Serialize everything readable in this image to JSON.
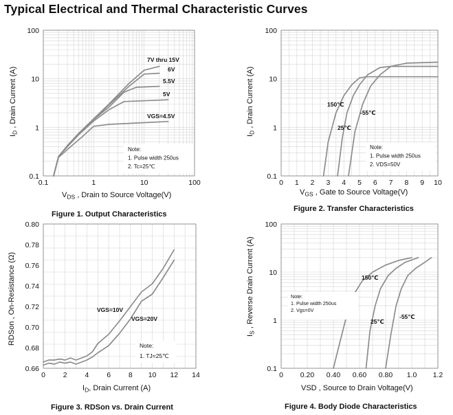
{
  "page": {
    "title": "Typical Electrical and Thermal Characteristic Curves"
  },
  "chart_data": [
    {
      "type": "line",
      "caption": "Figure 1. Output Characteristics",
      "xlabel_parts": [
        "V",
        "DS",
        " , Drain to Source Voltage(V)"
      ],
      "ylabel_parts": [
        "I",
        "D",
        " , Drain Current (A)"
      ],
      "xscale": "log",
      "yscale": "log",
      "xlim": [
        0.1,
        100
      ],
      "ylim": [
        0.1,
        100
      ],
      "xticks": [
        "0.1",
        "1",
        "10",
        "100"
      ],
      "yticks": [
        "0.1",
        "1",
        "10",
        "100"
      ],
      "grid": true,
      "note_lines": [
        "Note:",
        "1. Pulse width 250us",
        "2. Tc=25℃"
      ],
      "series": [
        {
          "name": "7V thru 15V",
          "x": [
            0.16,
            0.2,
            0.3,
            0.5,
            1,
            2,
            5,
            10,
            20
          ],
          "y": [
            0.1,
            0.25,
            0.42,
            0.75,
            1.5,
            3,
            8,
            15,
            18
          ]
        },
        {
          "name": "6V",
          "x": [
            0.16,
            0.2,
            0.3,
            0.5,
            1,
            2,
            5,
            10,
            20
          ],
          "y": [
            0.1,
            0.25,
            0.42,
            0.74,
            1.45,
            2.9,
            7,
            12.5,
            13
          ]
        },
        {
          "name": "5.5V",
          "x": [
            0.16,
            0.2,
            0.3,
            0.5,
            1,
            2,
            4,
            7,
            20
          ],
          "y": [
            0.1,
            0.25,
            0.41,
            0.73,
            1.45,
            2.6,
            5.3,
            6.7,
            7
          ]
        },
        {
          "name": "5V",
          "x": [
            0.16,
            0.2,
            0.3,
            0.5,
            1,
            2,
            4,
            30
          ],
          "y": [
            0.1,
            0.25,
            0.4,
            0.7,
            1.35,
            2.3,
            3.4,
            3.7
          ]
        },
        {
          "name": "VGS=4.5V",
          "x": [
            0.16,
            0.2,
            0.3,
            0.6,
            1,
            2,
            10,
            30
          ],
          "y": [
            0.1,
            0.24,
            0.35,
            0.65,
            1.05,
            1.15,
            1.25,
            1.32
          ]
        }
      ]
    },
    {
      "type": "line",
      "caption": "Figure 2. Transfer Characteristics",
      "xlabel_parts": [
        "V",
        "GS",
        " , Gate to Source Voltage(V)"
      ],
      "ylabel_parts": [
        "I",
        "D",
        " , Drain Current (A)"
      ],
      "xscale": "linear",
      "yscale": "log",
      "xlim": [
        0,
        10
      ],
      "ylim": [
        0.1,
        100
      ],
      "xticks": [
        "0",
        "1",
        "2",
        "3",
        "4",
        "5",
        "6",
        "7",
        "8",
        "9",
        "10"
      ],
      "yticks": [
        "0.1",
        "1",
        "10",
        "100"
      ],
      "grid": true,
      "note_lines": [
        "Note:",
        "1. Pulse width 250us",
        "2. VDS=50V"
      ],
      "series": [
        {
          "name": "150℃",
          "x": [
            2.7,
            3.0,
            3.5,
            4.0,
            4.5,
            5.0,
            5.5,
            6.0,
            10
          ],
          "y": [
            0.1,
            0.5,
            2,
            4.5,
            7.5,
            10.5,
            11,
            11,
            11
          ]
        },
        {
          "name": "25℃",
          "x": [
            3.6,
            3.9,
            4.2,
            4.6,
            5.0,
            5.5,
            6.3,
            7.0,
            10
          ],
          "y": [
            0.1,
            0.6,
            2,
            4.5,
            7.5,
            12,
            17,
            18,
            18
          ]
        },
        {
          "name": "-55℃",
          "x": [
            4.3,
            4.7,
            5.2,
            5.7,
            6.3,
            7.0,
            8.0,
            10
          ],
          "y": [
            0.1,
            0.8,
            3,
            7,
            12,
            18,
            21,
            22
          ]
        }
      ]
    },
    {
      "type": "line",
      "caption": "Figure 3. RDSon vs. Drain Current",
      "xlabel_parts": [
        "I",
        "D",
        ", Drain Current (A)"
      ],
      "ylabel": "RDSon , On-Resistance (Ω)",
      "xscale": "linear",
      "yscale": "linear",
      "xlim": [
        0,
        14
      ],
      "ylim": [
        0.66,
        0.8
      ],
      "xticks": [
        "0",
        "2",
        "4",
        "6",
        "8",
        "10",
        "12",
        "14"
      ],
      "yticks": [
        "0.66",
        "0.68",
        "0.70",
        "0.72",
        "0.74",
        "0.76",
        "0.78",
        "0.80"
      ],
      "grid": true,
      "note_lines": [
        "Note:",
        "1. TJ=25℃"
      ],
      "series": [
        {
          "name": "VGS=10V",
          "x": [
            0,
            0.5,
            1,
            1.5,
            2,
            2.5,
            3,
            3.5,
            4,
            4.5,
            5,
            6,
            7,
            8,
            9,
            10,
            11,
            12
          ],
          "y": [
            0.666,
            0.668,
            0.668,
            0.669,
            0.668,
            0.67,
            0.668,
            0.67,
            0.672,
            0.676,
            0.684,
            0.693,
            0.706,
            0.72,
            0.734,
            0.742,
            0.757,
            0.775
          ]
        },
        {
          "name": "VGS=20V",
          "x": [
            0,
            0.5,
            1,
            1.5,
            2,
            2.5,
            3,
            3.5,
            4,
            4.5,
            5,
            6,
            7,
            8,
            9,
            10,
            11,
            12
          ],
          "y": [
            0.663,
            0.665,
            0.664,
            0.666,
            0.665,
            0.666,
            0.664,
            0.666,
            0.668,
            0.671,
            0.675,
            0.682,
            0.694,
            0.708,
            0.725,
            0.732,
            0.748,
            0.765
          ]
        }
      ]
    },
    {
      "type": "line",
      "caption": "Figure 4. Body Diode Characteristics",
      "xlabel": "VSD , Source to Drain Voltage(V)",
      "ylabel_parts": [
        "I",
        "S",
        " , Reverse Drain Current (A)"
      ],
      "xscale": "linear",
      "yscale": "log",
      "xlim": [
        0,
        1.2
      ],
      "ylim": [
        0.1,
        100
      ],
      "xticks": [
        "0",
        "0.20",
        "0.40",
        "0.60",
        "0.80",
        "1.0",
        "1.2"
      ],
      "yticks": [
        "0.1",
        "1",
        "10",
        "100"
      ],
      "grid": true,
      "note_lines": [
        "Note:",
        "1. Pulse width 250us",
        "2. Vgs=0V"
      ],
      "series": [
        {
          "name": "150℃",
          "x": [
            0.4,
            0.45,
            0.5,
            0.55,
            0.62,
            0.7,
            0.8,
            0.9,
            1.0
          ],
          "y": [
            0.1,
            0.35,
            1.2,
            3.2,
            6.5,
            10,
            14,
            17.5,
            20
          ]
        },
        {
          "name": "25℃",
          "x": [
            0.65,
            0.68,
            0.72,
            0.76,
            0.82,
            0.88,
            0.95,
            1.05
          ],
          "y": [
            0.1,
            0.6,
            2,
            4.5,
            8.5,
            12,
            16,
            20
          ]
        },
        {
          "name": "-55℃",
          "x": [
            0.8,
            0.84,
            0.88,
            0.92,
            0.97,
            1.03,
            1.1,
            1.15
          ],
          "y": [
            0.1,
            0.5,
            2,
            4.5,
            8.5,
            12,
            16,
            20
          ]
        }
      ]
    }
  ],
  "colors": {
    "curve": "#8c8c8c",
    "grid": "#d4d4d4",
    "axis": "#888888"
  }
}
